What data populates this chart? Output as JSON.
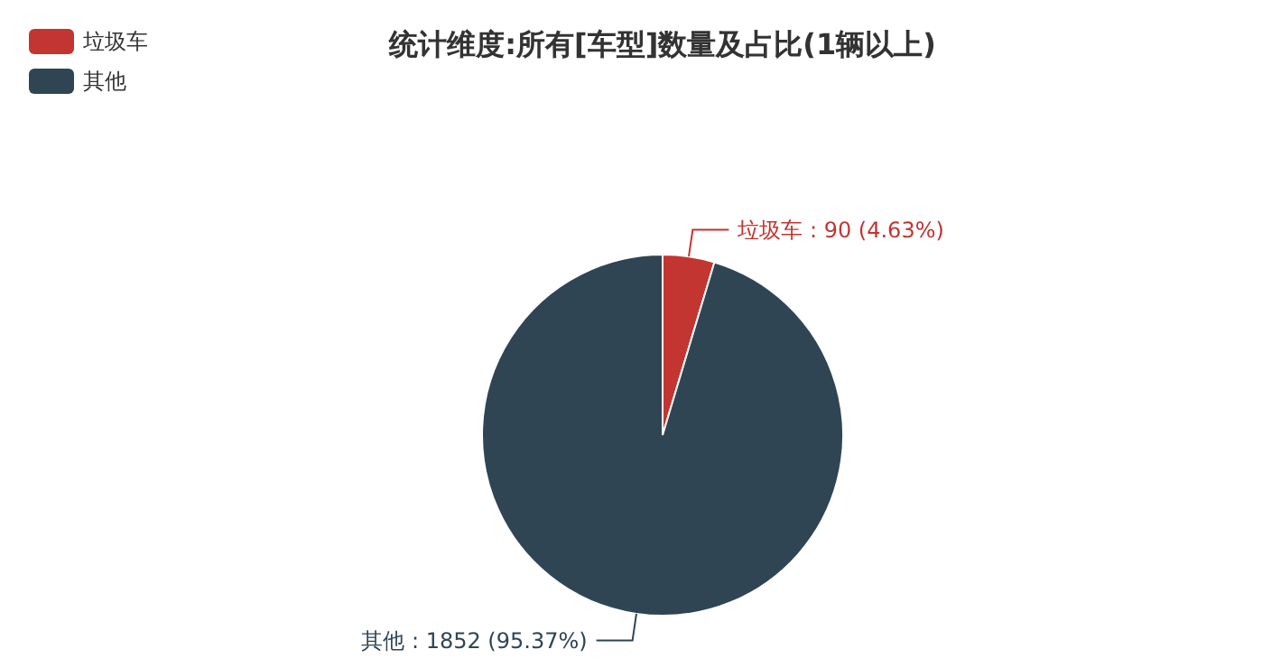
{
  "chart_data": {
    "type": "pie",
    "title": "统计维度:所有[车型]数量及占比(1辆以上)",
    "categories": [
      "垃圾车",
      "其他"
    ],
    "values": [
      90,
      1852
    ],
    "colors": [
      "#c23531",
      "#2f4554"
    ],
    "value_labels": [
      "垃圾车 : 90 (4.63%)",
      "其他 : 1852 (95.37%)"
    ],
    "legend": "top left"
  }
}
